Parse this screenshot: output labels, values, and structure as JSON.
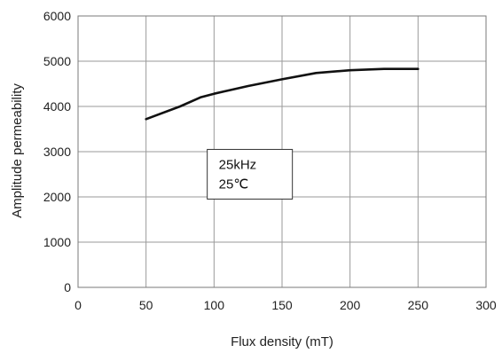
{
  "chart_data": {
    "type": "line",
    "title": "",
    "xlabel": "Flux density (mT)",
    "ylabel": "Amplitude permeability",
    "xlim": [
      0,
      300
    ],
    "ylim": [
      0,
      6000
    ],
    "x_ticks": [
      0,
      50,
      100,
      150,
      200,
      250,
      300
    ],
    "y_ticks": [
      0,
      1000,
      2000,
      3000,
      4000,
      5000,
      6000
    ],
    "grid": true,
    "series": [
      {
        "x": [
          50,
          75,
          90,
          100,
          125,
          150,
          175,
          200,
          225,
          250
        ],
        "y": [
          3720,
          4000,
          4200,
          4280,
          4450,
          4600,
          4740,
          4800,
          4830,
          4830
        ]
      }
    ],
    "annotation": {
      "lines": [
        "25kHz",
        "25℃"
      ],
      "x": 95,
      "y": 3050
    },
    "colors": {
      "line": "#111111",
      "grid": "#9a9a9a",
      "frame": "#7a7a7a"
    }
  }
}
